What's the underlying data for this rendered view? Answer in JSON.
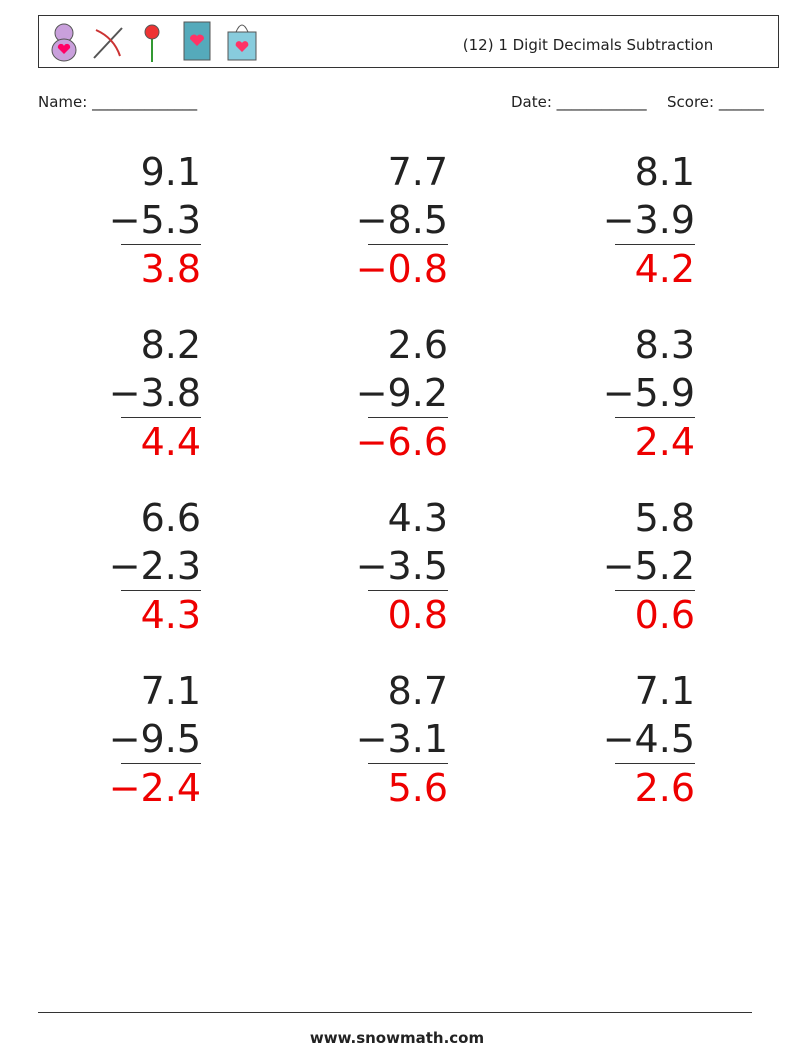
{
  "header": {
    "title": "(12) 1 Digit Decimals Subtraction",
    "name_label": "Name: ______________",
    "date_label": "Date: ____________",
    "score_label": "Score: ______"
  },
  "problems": [
    {
      "top": "9.1",
      "bottom": "−5.3",
      "answer": "3.8"
    },
    {
      "top": "7.7",
      "bottom": "−8.5",
      "answer": "−0.8"
    },
    {
      "top": "8.1",
      "bottom": "−3.9",
      "answer": "4.2"
    },
    {
      "top": "8.2",
      "bottom": "−3.8",
      "answer": "4.4"
    },
    {
      "top": "2.6",
      "bottom": "−9.2",
      "answer": "−6.6"
    },
    {
      "top": "8.3",
      "bottom": "−5.9",
      "answer": "2.4"
    },
    {
      "top": "6.6",
      "bottom": "−2.3",
      "answer": "4.3"
    },
    {
      "top": "4.3",
      "bottom": "−3.5",
      "answer": "0.8"
    },
    {
      "top": "5.8",
      "bottom": "−5.2",
      "answer": "0.6"
    },
    {
      "top": "7.1",
      "bottom": "−9.5",
      "answer": "−2.4"
    },
    {
      "top": "8.7",
      "bottom": "−3.1",
      "answer": "5.6"
    },
    {
      "top": "7.1",
      "bottom": "−4.5",
      "answer": "2.6"
    }
  ],
  "footer": {
    "text": "www.snowmath.com"
  }
}
